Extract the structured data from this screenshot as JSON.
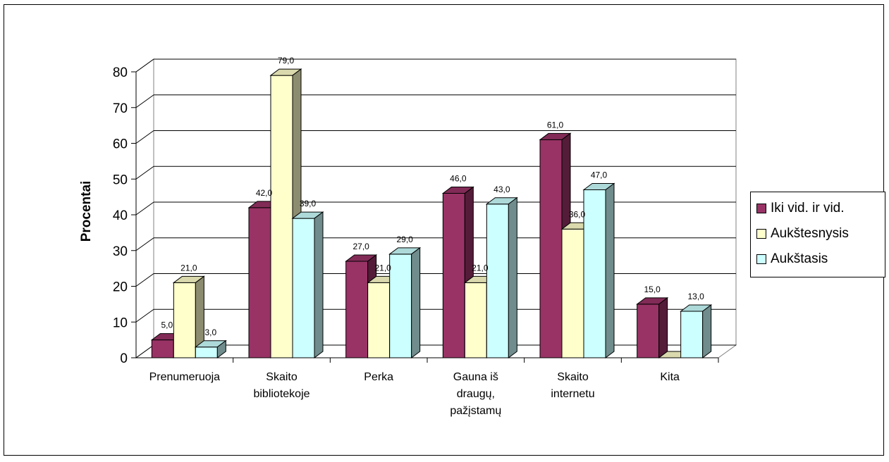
{
  "chart_data": {
    "type": "bar",
    "ylabel": "Procentai",
    "ylim": [
      0,
      80
    ],
    "yticks": [
      "0",
      "10",
      "20",
      "30",
      "40",
      "50",
      "60",
      "70",
      "80"
    ],
    "categories": [
      [
        "Prenumeruoja"
      ],
      [
        "Skaito",
        "bibliotekoje"
      ],
      [
        "Perka"
      ],
      [
        "Gauna iš",
        "draugų,",
        "pažįstamų"
      ],
      [
        "Skaito",
        "internetu"
      ],
      [
        "Kita"
      ]
    ],
    "series": [
      {
        "name": "Iki vid. ir vid.",
        "color": "#993366",
        "values": [
          5.0,
          42.0,
          27.0,
          46.0,
          61.0,
          15.0
        ],
        "labels": [
          "5,0",
          "42,0",
          "27,0",
          "46,0",
          "61,0",
          "15,0"
        ]
      },
      {
        "name": "Aukštesnysis",
        "color": "#FFFFCC",
        "values": [
          21.0,
          79.0,
          21.0,
          21.0,
          36.0,
          0
        ],
        "labels": [
          "21,0",
          "79,0",
          "21,0",
          "21,0",
          "36,0",
          ""
        ]
      },
      {
        "name": "Aukštasis",
        "color": "#CCFFFF",
        "values": [
          3.0,
          39.0,
          29.0,
          43.0,
          47.0,
          13.0
        ],
        "labels": [
          "3,0",
          "39,0",
          "29,0",
          "43,0",
          "47,0",
          "13,0"
        ]
      }
    ],
    "grid": true,
    "legend_position": "right",
    "style": "3d-clustered-column"
  }
}
